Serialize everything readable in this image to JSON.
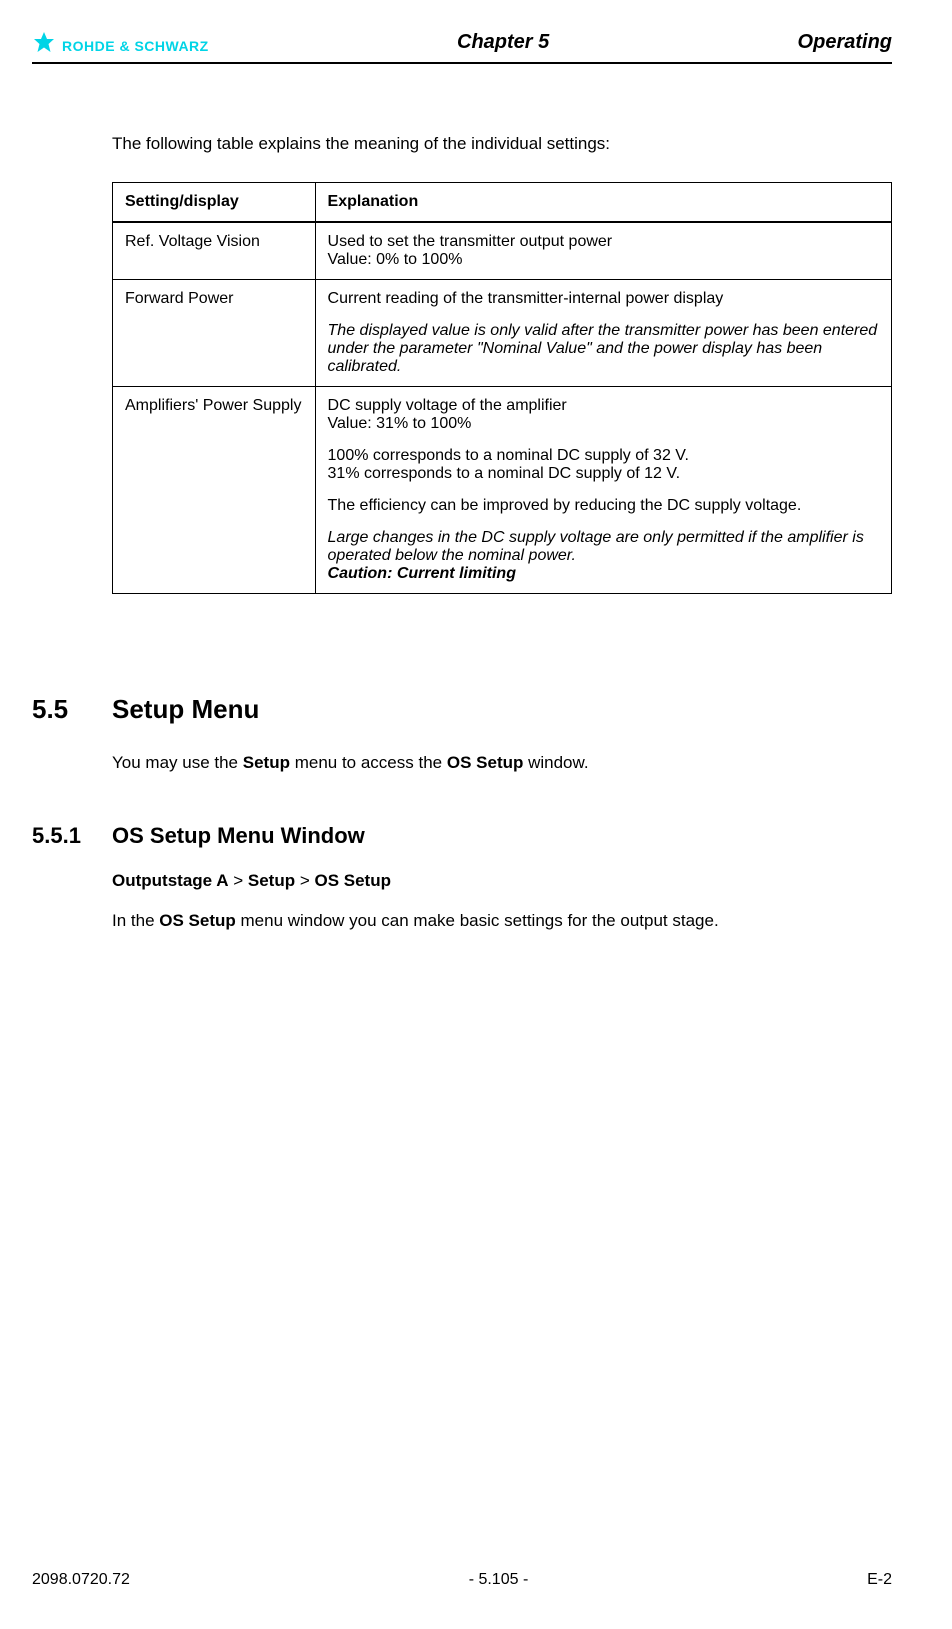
{
  "header": {
    "logo_text": "ROHDE & SCHWARZ",
    "chapter": "Chapter 5",
    "section_label": "Operating"
  },
  "intro_text": "The following table explains the meaning of the individual settings:",
  "table": {
    "headers": {
      "col1": "Setting/display",
      "col2": "Explanation"
    },
    "rows": [
      {
        "setting": "Ref. Voltage Vision",
        "lines": [
          {
            "text": "Used to set the transmitter output power",
            "style": "normal"
          },
          {
            "text": "Value: 0% to 100%",
            "style": "normal"
          }
        ]
      },
      {
        "setting": "Forward Power",
        "lines": [
          {
            "text": "Current reading of the transmitter-internal power display",
            "style": "normal"
          },
          {
            "text": "",
            "style": "gap"
          },
          {
            "text": "The displayed value is only valid after the transmitter power has been entered under the parameter \"Nominal Value\" and the power display has been calibrated.",
            "style": "italic"
          }
        ]
      },
      {
        "setting": "Amplifiers' Power Supply",
        "lines": [
          {
            "text": "DC supply voltage of the amplifier",
            "style": "normal"
          },
          {
            "text": "Value: 31% to 100%",
            "style": "normal"
          },
          {
            "text": "",
            "style": "gap"
          },
          {
            "text": "100% corresponds to a nominal DC supply of 32 V.",
            "style": "normal"
          },
          {
            "text": "31% corresponds to a nominal DC supply of 12 V.",
            "style": "normal"
          },
          {
            "text": "",
            "style": "gap"
          },
          {
            "text": "The efficiency can be improved by reducing the DC supply voltage.",
            "style": "normal"
          },
          {
            "text": "",
            "style": "gap"
          },
          {
            "text": "Large changes in the DC supply voltage are only permitted if the amplifier is operated below the nominal power.",
            "style": "italic"
          },
          {
            "text": "Caution: Current limiting",
            "style": "bold-italic"
          }
        ]
      }
    ]
  },
  "section": {
    "number": "5.5",
    "title": "Setup Menu",
    "para_parts": [
      "You may use the ",
      "Setup",
      " menu to access the ",
      "OS Setup",
      " window."
    ]
  },
  "subsection": {
    "number": "5.5.1",
    "title": "OS Setup Menu Window",
    "breadcrumb": {
      "a": "Outputstage A",
      "sep1": " > ",
      "b": "Setup",
      "sep2": " > ",
      "c": "OS Setup"
    },
    "para_parts": [
      "In the ",
      "OS Setup",
      " menu window you can make basic settings for the output stage."
    ]
  },
  "footer": {
    "left": "2098.0720.72",
    "center": "- 5.105 -",
    "right": "E-2"
  }
}
